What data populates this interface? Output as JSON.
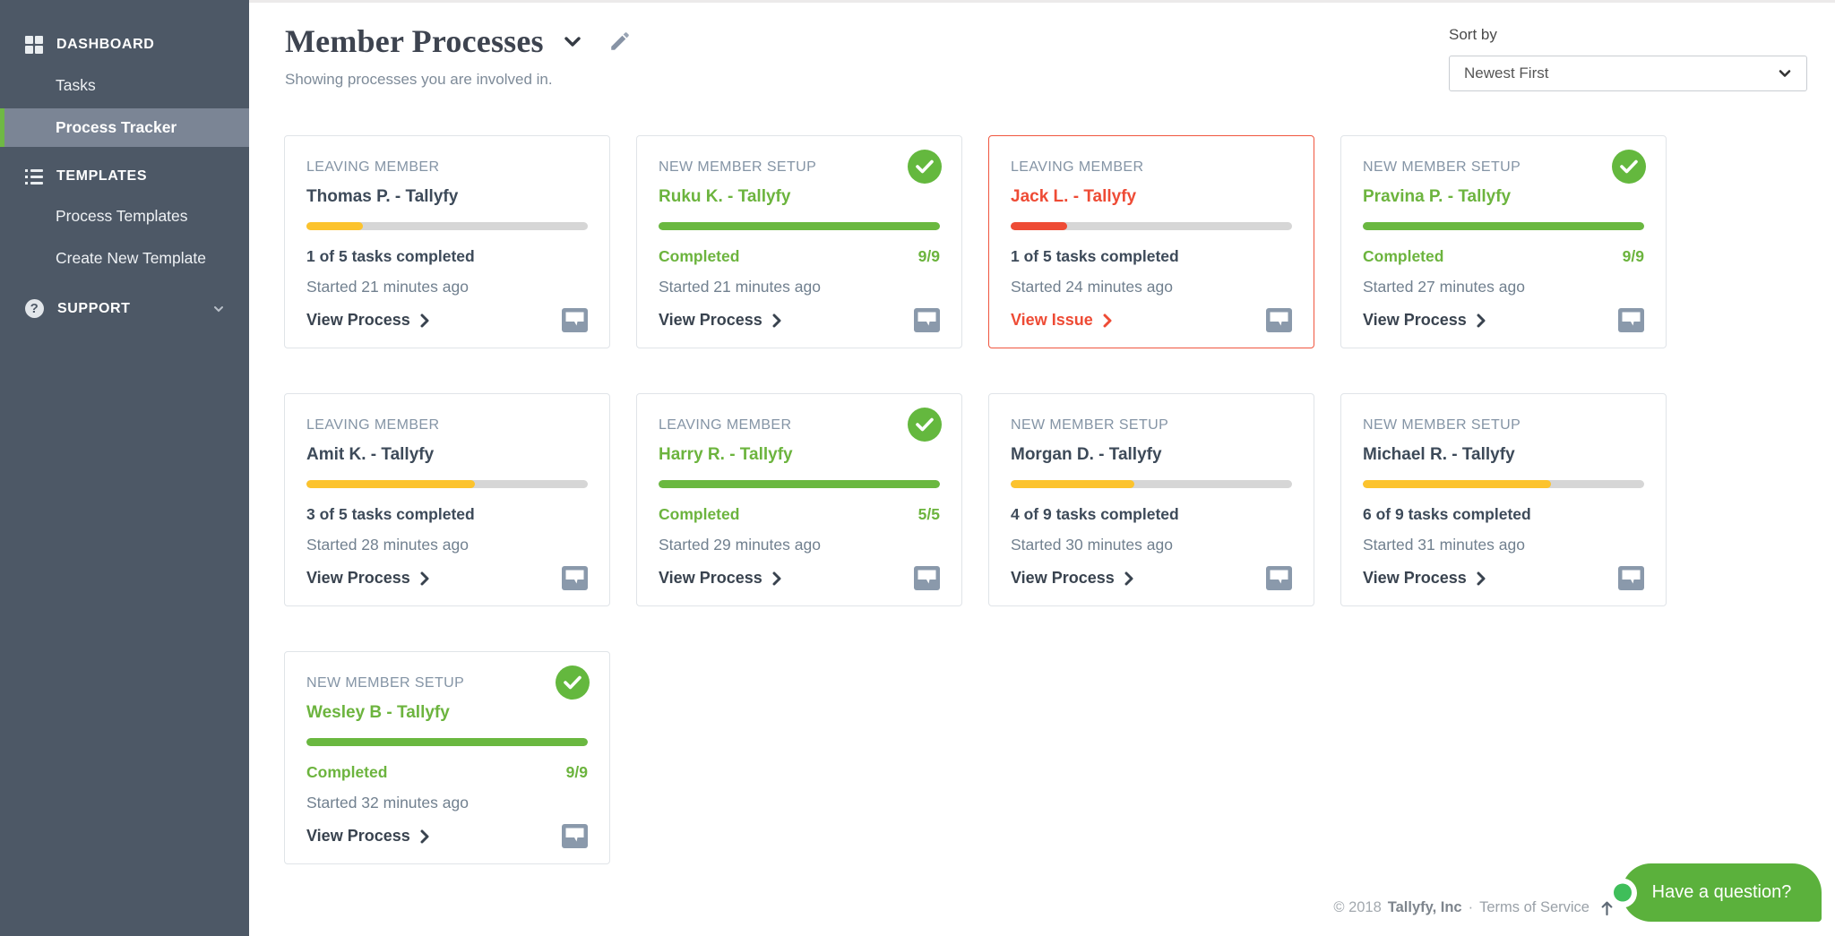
{
  "sidebar": {
    "dashboard_label": "DASHBOARD",
    "tasks_label": "Tasks",
    "process_tracker_label": "Process Tracker",
    "templates_label": "TEMPLATES",
    "process_templates_label": "Process Templates",
    "create_new_template_label": "Create New Template",
    "support_label": "SUPPORT"
  },
  "header": {
    "title": "Member Processes",
    "subtitle": "Showing processes you are involved in."
  },
  "sort": {
    "label": "Sort by",
    "value": "Newest First"
  },
  "cards": [
    {
      "type": "LEAVING MEMBER",
      "name": "Thomas P. - Tallyfy",
      "state": "in-progress",
      "progress_pct": 20,
      "status_left": "1 of 5 tasks completed",
      "status_right": "",
      "started": "Started 21 minutes ago",
      "action": "View Process"
    },
    {
      "type": "NEW MEMBER SETUP",
      "name": "Ruku K. - Tallyfy",
      "state": "completed",
      "progress_pct": 100,
      "status_left": "Completed",
      "status_right": "9/9",
      "started": "Started 21 minutes ago",
      "action": "View Process"
    },
    {
      "type": "LEAVING MEMBER",
      "name": "Jack L. - Tallyfy",
      "state": "issue",
      "progress_pct": 20,
      "status_left": "1 of 5 tasks completed",
      "status_right": "",
      "started": "Started 24 minutes ago",
      "action": "View Issue"
    },
    {
      "type": "NEW MEMBER SETUP",
      "name": "Pravina P. - Tallyfy",
      "state": "completed",
      "progress_pct": 100,
      "status_left": "Completed",
      "status_right": "9/9",
      "started": "Started 27 minutes ago",
      "action": "View Process"
    },
    {
      "type": "LEAVING MEMBER",
      "name": "Amit K. - Tallyfy",
      "state": "in-progress",
      "progress_pct": 60,
      "status_left": "3 of 5 tasks completed",
      "status_right": "",
      "started": "Started 28 minutes ago",
      "action": "View Process"
    },
    {
      "type": "LEAVING MEMBER",
      "name": "Harry R. - Tallyfy",
      "state": "completed",
      "progress_pct": 100,
      "status_left": "Completed",
      "status_right": "5/5",
      "started": "Started 29 minutes ago",
      "action": "View Process"
    },
    {
      "type": "NEW MEMBER SETUP",
      "name": "Morgan D. - Tallyfy",
      "state": "in-progress",
      "progress_pct": 44,
      "status_left": "4 of 9 tasks completed",
      "status_right": "",
      "started": "Started 30 minutes ago",
      "action": "View Process"
    },
    {
      "type": "NEW MEMBER SETUP",
      "name": "Michael R. - Tallyfy",
      "state": "in-progress",
      "progress_pct": 67,
      "status_left": "6 of 9 tasks completed",
      "status_right": "",
      "started": "Started 31 minutes ago",
      "action": "View Process"
    },
    {
      "type": "NEW MEMBER SETUP",
      "name": "Wesley B - Tallyfy",
      "state": "completed",
      "progress_pct": 100,
      "status_left": "Completed",
      "status_right": "9/9",
      "started": "Started 32 minutes ago",
      "action": "View Process"
    }
  ],
  "footer": {
    "copyright": "© 2018",
    "company": "Tallyfy, Inc",
    "separator": "·",
    "terms": "Terms of Service"
  },
  "chat": {
    "label": "Have a question?"
  },
  "icons": {
    "dashboard": "grid-icon",
    "templates": "list-icon",
    "support": "question-icon",
    "support_expand": "chevron-down-icon",
    "title_menu": "chevron-down-icon",
    "edit": "pencil-icon",
    "sort_expand": "chevron-down-icon",
    "card_completed_badge": "check-icon",
    "card_action": "chevron-right-icon",
    "card_comment": "tooltip-icon",
    "footer_scroll_top": "arrow-up-icon"
  },
  "colors": {
    "sidebar_bg": "#4d5866",
    "sidebar_active_bg": "#7b8595",
    "accent_green": "#68b843",
    "progress_yellow": "#fcc32d",
    "alert_red": "#ee4b35",
    "chat_green": "#5bb13c"
  }
}
